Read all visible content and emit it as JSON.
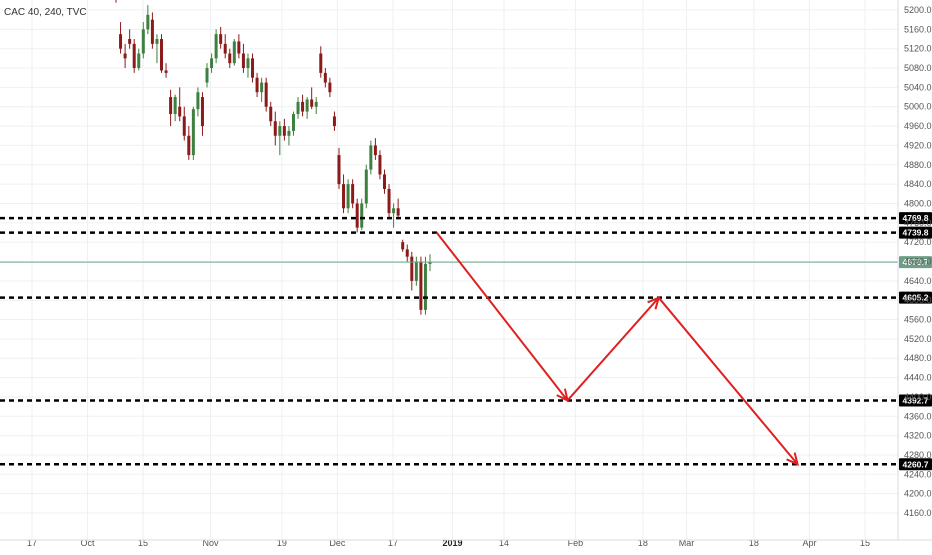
{
  "symbol_label": "CAC 40, 240, TVC",
  "colors": {
    "up": "#3f7f3f",
    "down": "#8b1a1a",
    "grid": "#eef0f3",
    "level_line": "#000000",
    "current_line": "#6fa88a",
    "current_badge": "#6f9e86",
    "arrow": "#e02020",
    "axis_text": "#555555"
  },
  "chart_data": {
    "type": "candlestick",
    "title": "",
    "ylim": [
      4130,
      5230
    ],
    "y_ticks": [
      "5200.0",
      "5160.0",
      "5120.0",
      "5080.0",
      "5040.0",
      "5000.0",
      "4960.0",
      "4920.0",
      "4880.0",
      "4840.0",
      "4800.0",
      "4760.0",
      "4720.0",
      "4680.0",
      "4640.0",
      "4600.0",
      "4560.0",
      "4520.0",
      "4480.0",
      "4440.0",
      "4400.0",
      "4360.0",
      "4320.0",
      "4280.0",
      "4240.0",
      "4200.0",
      "4160.0"
    ],
    "x_ticks": [
      {
        "label": "17",
        "bold": false
      },
      {
        "label": "Oct",
        "bold": false
      },
      {
        "label": "15",
        "bold": false
      },
      {
        "label": "Nov",
        "bold": false
      },
      {
        "label": "19",
        "bold": false
      },
      {
        "label": "Dec",
        "bold": false
      },
      {
        "label": "17",
        "bold": false
      },
      {
        "label": "2019",
        "bold": true
      },
      {
        "label": "14",
        "bold": false
      },
      {
        "label": "Feb",
        "bold": false
      },
      {
        "label": "18",
        "bold": false
      },
      {
        "label": "Mar",
        "bold": false
      },
      {
        "label": "18",
        "bold": false
      },
      {
        "label": "Apr",
        "bold": false
      },
      {
        "label": "15",
        "bold": false
      }
    ],
    "levels": [
      {
        "value": 4769.8,
        "label": "4769.8"
      },
      {
        "value": 4739.8,
        "label": "4739.8"
      },
      {
        "value": 4605.2,
        "label": "4605.2"
      },
      {
        "value": 4392.7,
        "label": "4392.7"
      },
      {
        "value": 4260.7,
        "label": "4260.7"
      }
    ],
    "current_price": {
      "value": 4678.7,
      "label": "4678.7"
    },
    "projection": [
      {
        "date": "2018-12-28",
        "value": 4740
      },
      {
        "date": "2019-01-30",
        "value": 4392.7
      },
      {
        "date": "2019-02-22",
        "value": 4605.2
      },
      {
        "date": "2019-03-29",
        "value": 4260.7
      }
    ],
    "candles": [
      {
        "o": 5228,
        "h": 5232,
        "l": 5215,
        "c": 5222
      },
      {
        "o": 5150,
        "h": 5175,
        "l": 5110,
        "c": 5120
      },
      {
        "o": 5110,
        "h": 5130,
        "l": 5080,
        "c": 5100
      },
      {
        "o": 5140,
        "h": 5160,
        "l": 5120,
        "c": 5130
      },
      {
        "o": 5130,
        "h": 5140,
        "l": 5070,
        "c": 5080
      },
      {
        "o": 5080,
        "h": 5120,
        "l": 5075,
        "c": 5110
      },
      {
        "o": 5110,
        "h": 5175,
        "l": 5100,
        "c": 5160
      },
      {
        "o": 5160,
        "h": 5210,
        "l": 5150,
        "c": 5190
      },
      {
        "o": 5180,
        "h": 5195,
        "l": 5120,
        "c": 5130
      },
      {
        "o": 5130,
        "h": 5150,
        "l": 5090,
        "c": 5140
      },
      {
        "o": 5140,
        "h": 5150,
        "l": 5070,
        "c": 5075
      },
      {
        "o": 5075,
        "h": 5090,
        "l": 5060,
        "c": 5070
      },
      {
        "o": 5020,
        "h": 5035,
        "l": 4960,
        "c": 4985
      },
      {
        "o": 4985,
        "h": 5025,
        "l": 4970,
        "c": 5020
      },
      {
        "o": 5000,
        "h": 5040,
        "l": 4970,
        "c": 4980
      },
      {
        "o": 4980,
        "h": 5000,
        "l": 4930,
        "c": 4940
      },
      {
        "o": 4940,
        "h": 4960,
        "l": 4890,
        "c": 4900
      },
      {
        "o": 4900,
        "h": 5000,
        "l": 4890,
        "c": 4995
      },
      {
        "o": 4995,
        "h": 5040,
        "l": 4980,
        "c": 5030
      },
      {
        "o": 5020,
        "h": 5030,
        "l": 4940,
        "c": 4960
      },
      {
        "o": 5050,
        "h": 5090,
        "l": 5040,
        "c": 5080
      },
      {
        "o": 5080,
        "h": 5110,
        "l": 5070,
        "c": 5100
      },
      {
        "o": 5100,
        "h": 5160,
        "l": 5090,
        "c": 5150
      },
      {
        "o": 5150,
        "h": 5165,
        "l": 5120,
        "c": 5130
      },
      {
        "o": 5130,
        "h": 5150,
        "l": 5100,
        "c": 5110
      },
      {
        "o": 5110,
        "h": 5120,
        "l": 5080,
        "c": 5090
      },
      {
        "o": 5090,
        "h": 5140,
        "l": 5085,
        "c": 5135
      },
      {
        "o": 5135,
        "h": 5150,
        "l": 5100,
        "c": 5110
      },
      {
        "o": 5110,
        "h": 5130,
        "l": 5070,
        "c": 5080
      },
      {
        "o": 5080,
        "h": 5110,
        "l": 5060,
        "c": 5100
      },
      {
        "o": 5100,
        "h": 5110,
        "l": 5050,
        "c": 5060
      },
      {
        "o": 5060,
        "h": 5070,
        "l": 5020,
        "c": 5030
      },
      {
        "o": 5030,
        "h": 5060,
        "l": 5010,
        "c": 5050
      },
      {
        "o": 5050,
        "h": 5060,
        "l": 4990,
        "c": 5000
      },
      {
        "o": 5000,
        "h": 5010,
        "l": 4960,
        "c": 4970
      },
      {
        "o": 4970,
        "h": 4990,
        "l": 4920,
        "c": 4940
      },
      {
        "o": 4940,
        "h": 4970,
        "l": 4900,
        "c": 4960
      },
      {
        "o": 4960,
        "h": 4975,
        "l": 4930,
        "c": 4940
      },
      {
        "o": 4940,
        "h": 4960,
        "l": 4920,
        "c": 4950
      },
      {
        "o": 4950,
        "h": 4990,
        "l": 4940,
        "c": 4985
      },
      {
        "o": 4985,
        "h": 5020,
        "l": 4975,
        "c": 5010
      },
      {
        "o": 5010,
        "h": 5025,
        "l": 4980,
        "c": 4990
      },
      {
        "o": 4990,
        "h": 5020,
        "l": 4975,
        "c": 5015
      },
      {
        "o": 5015,
        "h": 5040,
        "l": 4995,
        "c": 5000
      },
      {
        "o": 5000,
        "h": 5020,
        "l": 4985,
        "c": 5010
      },
      {
        "o": 5110,
        "h": 5125,
        "l": 5060,
        "c": 5070
      },
      {
        "o": 5070,
        "h": 5080,
        "l": 5040,
        "c": 5050
      },
      {
        "o": 5050,
        "h": 5060,
        "l": 5020,
        "c": 5030
      },
      {
        "o": 4980,
        "h": 4990,
        "l": 4950,
        "c": 4960
      },
      {
        "o": 4900,
        "h": 4915,
        "l": 4830,
        "c": 4840
      },
      {
        "o": 4840,
        "h": 4860,
        "l": 4780,
        "c": 4790
      },
      {
        "o": 4790,
        "h": 4850,
        "l": 4780,
        "c": 4840
      },
      {
        "o": 4840,
        "h": 4850,
        "l": 4790,
        "c": 4800
      },
      {
        "o": 4800,
        "h": 4810,
        "l": 4740,
        "c": 4750
      },
      {
        "o": 4750,
        "h": 4810,
        "l": 4745,
        "c": 4800
      },
      {
        "o": 4800,
        "h": 4880,
        "l": 4790,
        "c": 4870
      },
      {
        "o": 4870,
        "h": 4930,
        "l": 4860,
        "c": 4920
      },
      {
        "o": 4920,
        "h": 4935,
        "l": 4890,
        "c": 4900
      },
      {
        "o": 4900,
        "h": 4910,
        "l": 4850,
        "c": 4860
      },
      {
        "o": 4860,
        "h": 4870,
        "l": 4820,
        "c": 4830
      },
      {
        "o": 4830,
        "h": 4840,
        "l": 4770,
        "c": 4780
      },
      {
        "o": 4780,
        "h": 4800,
        "l": 4750,
        "c": 4790
      },
      {
        "o": 4790,
        "h": 4810,
        "l": 4770,
        "c": 4775
      },
      {
        "o": 4720,
        "h": 4725,
        "l": 4700,
        "c": 4705
      },
      {
        "o": 4705,
        "h": 4715,
        "l": 4680,
        "c": 4690
      },
      {
        "o": 4690,
        "h": 4700,
        "l": 4620,
        "c": 4640
      },
      {
        "o": 4640,
        "h": 4690,
        "l": 4630,
        "c": 4680
      },
      {
        "o": 4680,
        "h": 4690,
        "l": 4570,
        "c": 4580
      },
      {
        "o": 4580,
        "h": 4690,
        "l": 4570,
        "c": 4675
      },
      {
        "o": 4675,
        "h": 4695,
        "l": 4660,
        "c": 4678.7
      }
    ]
  }
}
